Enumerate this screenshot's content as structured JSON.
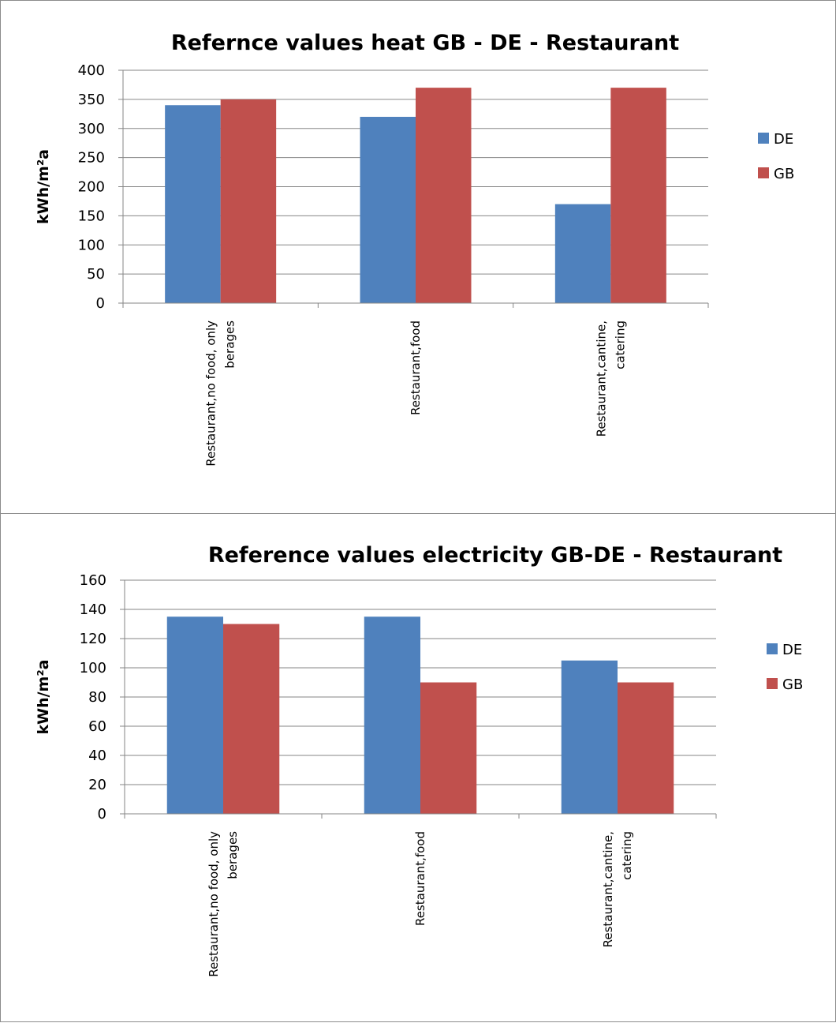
{
  "chart_data": [
    {
      "type": "bar",
      "title": "Refernce values heat GB - DE - Restaurant",
      "ylabel": "kWh/m²a",
      "xlabel": "",
      "ylim": [
        0,
        400
      ],
      "yticks": [
        0,
        50,
        100,
        150,
        200,
        250,
        300,
        350,
        400
      ],
      "grid": true,
      "legend": "right",
      "categories": [
        [
          "Restaurant,no food, only",
          "berages"
        ],
        [
          "Restaurant,food"
        ],
        [
          "Restaurant,cantine,",
          "catering"
        ]
      ],
      "series": [
        {
          "name": "DE",
          "color": "#4f81bd",
          "values": [
            340,
            320,
            170
          ]
        },
        {
          "name": "GB",
          "color": "#c0504d",
          "values": [
            350,
            370,
            370
          ]
        }
      ]
    },
    {
      "type": "bar",
      "title": "Reference values electricity GB-DE - Restaurant",
      "ylabel": "kWh/m²a",
      "xlabel": "",
      "ylim": [
        0,
        160
      ],
      "yticks": [
        0,
        20,
        40,
        60,
        80,
        100,
        120,
        140,
        160
      ],
      "grid": true,
      "legend": "right",
      "categories": [
        [
          "Restaurant,no food, only",
          "berages"
        ],
        [
          "Restaurant,food"
        ],
        [
          "Restaurant,cantine,",
          "catering"
        ]
      ],
      "series": [
        {
          "name": "DE",
          "color": "#4f81bd",
          "values": [
            135,
            135,
            105
          ]
        },
        {
          "name": "GB",
          "color": "#c0504d",
          "values": [
            130,
            90,
            90
          ]
        }
      ]
    }
  ]
}
